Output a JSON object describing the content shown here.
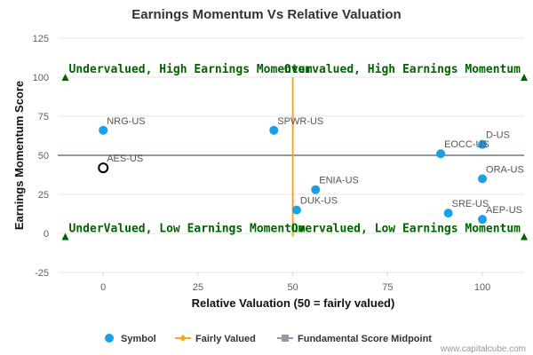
{
  "chart_data": {
    "type": "scatter",
    "title": "Earnings Momentum Vs Relative Valuation",
    "xlabel": "Relative Valuation (50 = fairly valued)",
    "ylabel": "Earnings Momentum Score",
    "xlim": [
      -12,
      111
    ],
    "ylim": [
      -25,
      125
    ],
    "x_ticks": [
      "0",
      "25",
      "50",
      "75",
      "100"
    ],
    "y_ticks": [
      "125",
      "100",
      "75",
      "50",
      "25",
      "0",
      "-25"
    ],
    "grid": "horizontal",
    "legend_position": "bottom",
    "series": [
      {
        "name": "Symbol",
        "color": "#1a9fe8",
        "points": [
          {
            "label": "NRG-US",
            "x": 0,
            "y": 66
          },
          {
            "label": "SPWR-US",
            "x": 45,
            "y": 66
          },
          {
            "label": "D-US",
            "x": 100,
            "y": 57
          },
          {
            "label": "EOCC-US",
            "x": 89,
            "y": 51
          },
          {
            "label": "ORA-US",
            "x": 100,
            "y": 35
          },
          {
            "label": "ENIA-US",
            "x": 56,
            "y": 28
          },
          {
            "label": "DUK-US",
            "x": 51,
            "y": 15
          },
          {
            "label": "SRE-US",
            "x": 91,
            "y": 13
          },
          {
            "label": "AEP-US",
            "x": 100,
            "y": 9
          }
        ],
        "highlight": {
          "label": "AES-US",
          "x": 0,
          "y": 42
        }
      },
      {
        "name": "Fairly Valued",
        "color": "#f5a623",
        "x": 50
      },
      {
        "name": "Fundamental Score Midpoint",
        "color": "#8e9aa8",
        "y": 50
      }
    ],
    "annotations": [
      {
        "text": "Undervalued, High Earnings Momentum",
        "x": -10,
        "y": 100
      },
      {
        "text": "Overvalued, High Earnings Momentum",
        "x": 111,
        "y": 100
      },
      {
        "text": "UnderValued, Low Earnings Momentum",
        "x": -10,
        "y": -2
      },
      {
        "text": "Overvalued, Low Earnings Momentum",
        "x": 111,
        "y": -2
      }
    ],
    "annotation_color": "#006400"
  },
  "credit": "www.capitalcube.com"
}
